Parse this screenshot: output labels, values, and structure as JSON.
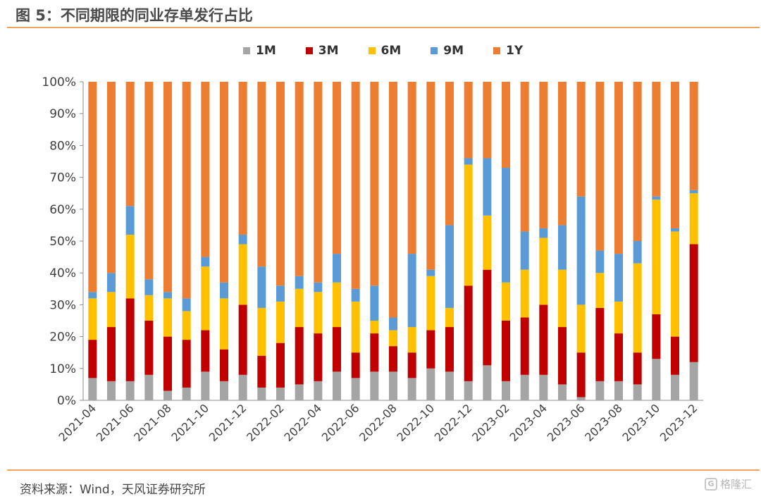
{
  "figure": {
    "title": "图 5：不同期限的同业存单发行占比",
    "source": "资料来源：Wind，天风证券研究所",
    "watermark": "格隆汇"
  },
  "colors": {
    "1M": "#a5a5a5",
    "3M": "#c00000",
    "6M": "#ffc000",
    "9M": "#5b9bd5",
    "1Y": "#ed7d31",
    "rule": "#f0a35e"
  },
  "chart_data": {
    "type": "bar",
    "stacked": true,
    "title": "",
    "xlabel": "",
    "ylabel": "",
    "ylim": [
      0,
      100
    ],
    "y_ticks": [
      "0%",
      "10%",
      "20%",
      "30%",
      "40%",
      "50%",
      "60%",
      "70%",
      "80%",
      "90%",
      "100%"
    ],
    "x_tick_labels": [
      "2021-04",
      "2021-06",
      "2021-08",
      "2021-10",
      "2021-12",
      "2022-02",
      "2022-04",
      "2022-06",
      "2022-08",
      "2022-10",
      "2022-12",
      "2023-02",
      "2023-04",
      "2023-06",
      "2023-08",
      "2023-10",
      "2023-12"
    ],
    "legend_position": "top",
    "categories": [
      "2021-04",
      "2021-05",
      "2021-06",
      "2021-07",
      "2021-08",
      "2021-09",
      "2021-10",
      "2021-11",
      "2021-12",
      "2022-01",
      "2022-02",
      "2022-03",
      "2022-04",
      "2022-05",
      "2022-06",
      "2022-07",
      "2022-08",
      "2022-09",
      "2022-10",
      "2022-11",
      "2022-12",
      "2023-01",
      "2023-02",
      "2023-03",
      "2023-04",
      "2023-05",
      "2023-06",
      "2023-07",
      "2023-08",
      "2023-09",
      "2023-10",
      "2023-11",
      "2023-12"
    ],
    "series": [
      {
        "name": "1M",
        "values": [
          7,
          6,
          6,
          8,
          3,
          4,
          9,
          6,
          8,
          4,
          4,
          5,
          6,
          9,
          7,
          9,
          9,
          7,
          10,
          9,
          6,
          11,
          6,
          8,
          8,
          5,
          1,
          6,
          6,
          5,
          13,
          8,
          12
        ]
      },
      {
        "name": "3M",
        "values": [
          12,
          17,
          26,
          17,
          17,
          15,
          13,
          10,
          22,
          10,
          14,
          18,
          15,
          14,
          8,
          12,
          8,
          8,
          12,
          14,
          30,
          30,
          19,
          18,
          22,
          18,
          14,
          23,
          15,
          10,
          14,
          12,
          37
        ]
      },
      {
        "name": "6M",
        "values": [
          13,
          11,
          20,
          8,
          12,
          9,
          20,
          16,
          19,
          15,
          13,
          12,
          13,
          14,
          16,
          4,
          5,
          8,
          17,
          6,
          38,
          17,
          12,
          15,
          21,
          18,
          15,
          11,
          10,
          28,
          36,
          33,
          16
        ]
      },
      {
        "name": "9M",
        "values": [
          2,
          6,
          9,
          5,
          2,
          4,
          3,
          5,
          3,
          13,
          5,
          4,
          3,
          9,
          4,
          11,
          4,
          23,
          2,
          26,
          2,
          18,
          36,
          12,
          3,
          14,
          34,
          7,
          15,
          7,
          1,
          1,
          1
        ]
      },
      {
        "name": "1Y",
        "values": [
          66,
          60,
          39,
          62,
          66,
          68,
          55,
          63,
          48,
          58,
          64,
          61,
          63,
          54,
          65,
          64,
          74,
          54,
          59,
          45,
          24,
          24,
          27,
          47,
          46,
          45,
          36,
          53,
          54,
          50,
          36,
          46,
          34
        ]
      }
    ]
  }
}
